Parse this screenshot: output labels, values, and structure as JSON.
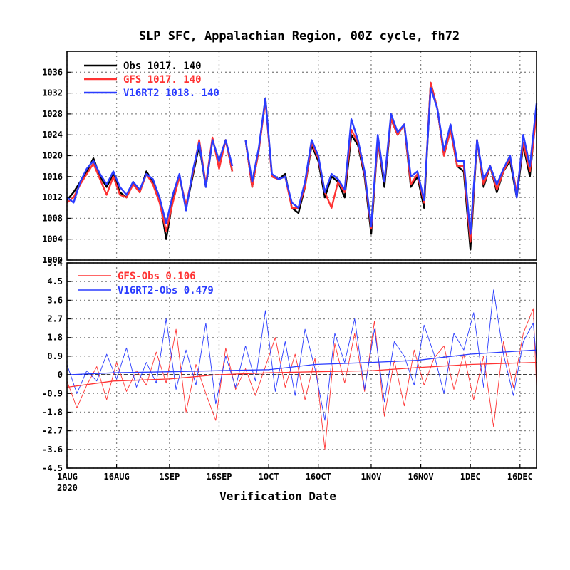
{
  "chart_data": {
    "title": "SLP SFC, Appalachian Region, 00Z cycle, fh72",
    "xlabel": "Verification Date",
    "x_start": "2020-08-01",
    "x_end": "2020-12-21",
    "x_ticks": [
      "1AUG",
      "16AUG",
      "1SEP",
      "16SEP",
      "1OCT",
      "16OCT",
      "1NOV",
      "16NOV",
      "1DEC",
      "16DEC"
    ],
    "x_ticks_dates": [
      "2020-08-01",
      "2020-08-16",
      "2020-09-01",
      "2020-09-16",
      "2020-10-01",
      "2020-10-16",
      "2020-11-01",
      "2020-11-16",
      "2020-12-01",
      "2020-12-16"
    ],
    "x_year_label": "2020",
    "colors": {
      "obs": "#000000",
      "gfs": "#ff3333",
      "v16": "#2a3cff"
    },
    "panels": [
      {
        "type": "line",
        "ylim": [
          1000,
          1040
        ],
        "y_ticks": [
          "1000",
          "1004",
          "1008",
          "1012",
          "1016",
          "1020",
          "1024",
          "1028",
          "1032",
          "1036"
        ],
        "grid": true,
        "legend": [
          {
            "label": "Obs",
            "stats": "1017.  140",
            "color": "#000000"
          },
          {
            "label": "GFS",
            "stats": "1017.  140",
            "color": "#ff3333"
          },
          {
            "label": "V16RT2",
            "stats": "1018.  140",
            "color": "#2a3cff"
          }
        ],
        "series": [
          {
            "name": "Obs",
            "color": "#000000",
            "x": [
              "2020-08-01",
              "2020-08-03",
              "2020-08-05",
              "2020-08-07",
              "2020-08-09",
              "2020-08-11",
              "2020-08-13",
              "2020-08-15",
              "2020-08-17",
              "2020-08-19",
              "2020-08-21",
              "2020-08-23",
              "2020-08-25",
              "2020-08-27",
              "2020-08-29",
              "2020-08-31",
              "2020-09-02",
              "2020-09-04",
              "2020-09-06",
              "2020-09-08",
              "2020-09-10",
              "2020-09-12",
              "2020-09-14",
              "2020-09-16",
              "2020-09-18",
              "2020-09-20",
              null,
              "2020-09-24",
              "2020-09-26",
              "2020-09-28",
              "2020-09-30",
              "2020-10-02",
              "2020-10-04",
              "2020-10-06",
              "2020-10-08",
              "2020-10-10",
              "2020-10-12",
              "2020-10-14",
              "2020-10-16",
              "2020-10-18",
              "2020-10-20",
              "2020-10-22",
              "2020-10-24",
              "2020-10-26",
              "2020-10-28",
              "2020-10-30",
              "2020-11-01",
              "2020-11-03",
              "2020-11-05",
              "2020-11-07",
              "2020-11-09",
              "2020-11-11",
              "2020-11-13",
              "2020-11-15",
              "2020-11-17",
              "2020-11-19",
              "2020-11-21",
              "2020-11-23",
              "2020-11-25",
              "2020-11-27",
              "2020-11-29",
              "2020-12-01",
              "2020-12-03",
              "2020-12-05",
              "2020-12-07",
              "2020-12-09",
              "2020-12-11",
              "2020-12-13",
              "2020-12-15",
              "2020-12-17",
              "2020-12-19",
              "2020-12-21"
            ],
            "values": [
              1011.5,
              1013,
              1015,
              1017,
              1019.5,
              1016,
              1014,
              1016.5,
              1013,
              1012,
              1015,
              1013,
              1017,
              1015,
              1012,
              1004,
              1011.5,
              1016,
              1010,
              1016,
              1022,
              1014,
              1023,
              1019,
              1023,
              1017,
              null,
              1023,
              1014,
              1021,
              1031,
              1016,
              1015.5,
              1016.5,
              1010,
              1009,
              1014,
              1022,
              1019,
              1012,
              1016,
              1015,
              1012,
              1024,
              1022,
              1016,
              1005,
              1023,
              1014,
              1027,
              1024,
              1026,
              1014,
              1016,
              1010,
              1034,
              1029,
              1020,
              1025,
              1018,
              1017,
              1002,
              1023,
              1014,
              1018,
              1013,
              1017,
              1019,
              1012,
              1022,
              1016,
              1029
            ]
          },
          {
            "name": "GFS",
            "color": "#ff3333",
            "x": [
              "2020-08-01",
              "2020-08-03",
              "2020-08-05",
              "2020-08-07",
              "2020-08-09",
              "2020-08-11",
              "2020-08-13",
              "2020-08-15",
              "2020-08-17",
              "2020-08-19",
              "2020-08-21",
              "2020-08-23",
              "2020-08-25",
              "2020-08-27",
              "2020-08-29",
              "2020-08-31",
              "2020-09-02",
              "2020-09-04",
              "2020-09-06",
              "2020-09-08",
              "2020-09-10",
              "2020-09-12",
              "2020-09-14",
              "2020-09-16",
              "2020-09-18",
              "2020-09-20",
              null,
              "2020-09-24",
              "2020-09-26",
              "2020-09-28",
              "2020-09-30",
              "2020-10-02",
              "2020-10-04",
              "2020-10-06",
              "2020-10-08",
              "2020-10-10",
              "2020-10-12",
              "2020-10-14",
              "2020-10-16",
              "2020-10-18",
              "2020-10-20",
              "2020-10-22",
              "2020-10-24",
              "2020-10-26",
              "2020-10-28",
              "2020-10-30",
              "2020-11-01",
              "2020-11-03",
              "2020-11-05",
              "2020-11-07",
              "2020-11-09",
              "2020-11-11",
              "2020-11-13",
              "2020-11-15",
              "2020-11-17",
              "2020-11-19",
              "2020-11-21",
              "2020-11-23",
              "2020-11-25",
              "2020-11-27",
              "2020-11-29",
              "2020-12-01",
              "2020-12-03",
              "2020-12-05",
              "2020-12-07",
              "2020-12-09",
              "2020-12-11",
              "2020-12-13",
              "2020-12-15",
              "2020-12-17",
              "2020-12-19",
              "2020-12-21"
            ],
            "values": [
              1011,
              1012,
              1014.5,
              1016.5,
              1018.5,
              1015.5,
              1012.5,
              1016,
              1012.5,
              1012,
              1014.5,
              1013,
              1016.5,
              1014.5,
              1011,
              1005.5,
              1011,
              1016,
              1010.5,
              1016.5,
              1023,
              1014.5,
              1023.5,
              1017.5,
              1023,
              1017,
              null,
              1023,
              1014,
              1021,
              1030.5,
              1016,
              1015.5,
              1016,
              1010,
              1010,
              1014,
              1022.5,
              1019.5,
              1013,
              1010,
              1015,
              1013,
              1025,
              1022.5,
              1016.5,
              1006,
              1023,
              1015,
              1027,
              1024,
              1026,
              1014.5,
              1016.5,
              1011,
              1034,
              1029,
              1020,
              1025,
              1018,
              1018,
              1003.5,
              1023,
              1014.5,
              1018,
              1013.5,
              1017,
              1019.5,
              1013,
              1022.5,
              1017,
              1028
            ]
          },
          {
            "name": "V16RT2",
            "color": "#2a3cff",
            "x": [
              "2020-08-01",
              "2020-08-03",
              "2020-08-05",
              "2020-08-07",
              "2020-08-09",
              "2020-08-11",
              "2020-08-13",
              "2020-08-15",
              "2020-08-17",
              "2020-08-19",
              "2020-08-21",
              "2020-08-23",
              "2020-08-25",
              "2020-08-27",
              "2020-08-29",
              "2020-08-31",
              "2020-09-02",
              "2020-09-04",
              "2020-09-06",
              "2020-09-08",
              "2020-09-10",
              "2020-09-12",
              "2020-09-14",
              "2020-09-16",
              "2020-09-18",
              "2020-09-20",
              null,
              "2020-09-24",
              "2020-09-26",
              "2020-09-28",
              "2020-09-30",
              "2020-10-02",
              "2020-10-04",
              "2020-10-06",
              "2020-10-08",
              "2020-10-10",
              "2020-10-12",
              "2020-10-14",
              "2020-10-16",
              "2020-10-18",
              "2020-10-20",
              "2020-10-22",
              "2020-10-24",
              "2020-10-26",
              "2020-10-28",
              "2020-10-30",
              "2020-11-01",
              "2020-11-03",
              "2020-11-05",
              "2020-11-07",
              "2020-11-09",
              "2020-11-11",
              "2020-11-13",
              "2020-11-15",
              "2020-11-17",
              "2020-11-19",
              "2020-11-21",
              "2020-11-23",
              "2020-11-25",
              "2020-11-27",
              "2020-11-29",
              "2020-12-01",
              "2020-12-03",
              "2020-12-05",
              "2020-12-07",
              "2020-12-09",
              "2020-12-11",
              "2020-12-13",
              "2020-12-15",
              "2020-12-17",
              "2020-12-19",
              "2020-12-21"
            ],
            "values": [
              1012,
              1011,
              1015,
              1017.5,
              1019,
              1016.5,
              1014.5,
              1017,
              1014,
              1012.5,
              1015,
              1013.5,
              1016.5,
              1015.5,
              1012,
              1007,
              1012.5,
              1016.5,
              1009.5,
              1017,
              1022.5,
              1014,
              1023,
              1019,
              1023,
              1018,
              null,
              1023,
              1015,
              1021.5,
              1031,
              1016.5,
              1015.5,
              1016,
              1011,
              1010,
              1015,
              1023,
              1020,
              1013,
              1016.5,
              1015.5,
              1013.5,
              1027,
              1023,
              1017,
              1006.5,
              1024,
              1015,
              1028,
              1024.5,
              1026,
              1016,
              1017,
              1011.5,
              1033,
              1029,
              1021,
              1026,
              1019,
              1019,
              1005,
              1023,
              1015.5,
              1018,
              1014.5,
              1017.5,
              1020,
              1012,
              1024,
              1018,
              1030
            ]
          }
        ]
      },
      {
        "type": "line",
        "ylim": [
          -4.5,
          5.4
        ],
        "y_ticks": [
          "-4.5",
          "-3.6",
          "-2.7",
          "-1.8",
          "-0.9",
          "0",
          "0.9",
          "1.8",
          "2.7",
          "3.6",
          "4.5",
          "5.4"
        ],
        "grid": true,
        "legend": [
          {
            "label": "GFS-Obs",
            "stats": "0.106",
            "color": "#ff3333"
          },
          {
            "label": "V16RT2-Obs",
            "stats": "0.479",
            "color": "#2a3cff"
          }
        ],
        "series": [
          {
            "name": "GFS-Obs",
            "color": "#ff3333",
            "x": [
              "2020-08-01",
              "2020-08-04",
              "2020-08-07",
              "2020-08-10",
              "2020-08-13",
              "2020-08-16",
              "2020-08-19",
              "2020-08-22",
              "2020-08-25",
              "2020-08-28",
              "2020-08-31",
              "2020-09-03",
              "2020-09-06",
              "2020-09-09",
              "2020-09-12",
              "2020-09-15",
              "2020-09-18",
              "2020-09-21",
              "2020-09-24",
              "2020-09-27",
              "2020-09-30",
              "2020-10-03",
              "2020-10-06",
              "2020-10-09",
              "2020-10-12",
              "2020-10-15",
              "2020-10-18",
              "2020-10-21",
              "2020-10-24",
              "2020-10-27",
              "2020-10-30",
              "2020-11-02",
              "2020-11-05",
              "2020-11-08",
              "2020-11-11",
              "2020-11-14",
              "2020-11-17",
              "2020-11-20",
              "2020-11-23",
              "2020-11-26",
              "2020-11-29",
              "2020-12-02",
              "2020-12-05",
              "2020-12-08",
              "2020-12-11",
              "2020-12-14",
              "2020-12-17",
              "2020-12-20",
              "2020-12-21"
            ],
            "values": [
              -0.3,
              -1.6,
              -0.5,
              0.4,
              -1.2,
              0.6,
              -0.8,
              0.2,
              -0.5,
              1.1,
              -0.4,
              2.2,
              -1.8,
              0.5,
              -0.9,
              -2.2,
              1.3,
              -0.7,
              0.3,
              -1.0,
              0.4,
              1.8,
              -0.6,
              1.0,
              -1.2,
              0.8,
              -3.6,
              1.5,
              -0.4,
              2.0,
              -0.8,
              2.6,
              -2.0,
              0.7,
              -1.5,
              1.2,
              -0.5,
              0.8,
              1.4,
              -0.7,
              1.0,
              -1.2,
              0.9,
              -2.5,
              1.6,
              -0.6,
              2.0,
              3.2,
              -0.6
            ]
          },
          {
            "name": "V16RT2-Obs",
            "color": "#2a3cff",
            "x": [
              "2020-08-01",
              "2020-08-04",
              "2020-08-07",
              "2020-08-10",
              "2020-08-13",
              "2020-08-16",
              "2020-08-19",
              "2020-08-22",
              "2020-08-25",
              "2020-08-28",
              "2020-08-31",
              "2020-09-03",
              "2020-09-06",
              "2020-09-09",
              "2020-09-12",
              "2020-09-15",
              "2020-09-18",
              "2020-09-21",
              "2020-09-24",
              "2020-09-27",
              "2020-09-30",
              "2020-10-03",
              "2020-10-06",
              "2020-10-09",
              "2020-10-12",
              "2020-10-15",
              "2020-10-18",
              "2020-10-21",
              "2020-10-24",
              "2020-10-27",
              "2020-10-30",
              "2020-11-02",
              "2020-11-05",
              "2020-11-08",
              "2020-11-11",
              "2020-11-14",
              "2020-11-17",
              "2020-11-20",
              "2020-11-23",
              "2020-11-26",
              "2020-11-29",
              "2020-12-02",
              "2020-12-05",
              "2020-12-08",
              "2020-12-11",
              "2020-12-14",
              "2020-12-17",
              "2020-12-20",
              "2020-12-21"
            ],
            "values": [
              0.5,
              -0.9,
              0.2,
              -0.3,
              1.0,
              -0.2,
              1.3,
              -0.6,
              0.6,
              -0.4,
              2.7,
              -0.7,
              1.2,
              -0.5,
              2.5,
              -1.4,
              0.9,
              -0.6,
              1.4,
              -0.3,
              3.1,
              -0.8,
              1.6,
              -1.0,
              2.2,
              0.3,
              -2.2,
              2.0,
              0.6,
              2.7,
              -0.7,
              2.2,
              -1.3,
              1.6,
              0.9,
              -0.5,
              2.4,
              1.0,
              -0.9,
              2.0,
              1.2,
              3.0,
              -0.6,
              4.1,
              1.0,
              -1.0,
              1.6,
              2.5,
              0.7
            ]
          },
          {
            "name": "",
            "color": "#ff3333",
            "x": [
              "2020-08-01",
              "2020-08-15",
              "2020-09-01",
              "2020-09-15",
              "2020-10-01",
              "2020-10-15",
              "2020-11-01",
              "2020-11-15",
              "2020-12-01",
              "2020-12-21"
            ],
            "values": [
              -0.6,
              -0.3,
              -0.2,
              0.0,
              0.1,
              0.15,
              0.2,
              0.35,
              0.5,
              0.6
            ]
          },
          {
            "name": "",
            "color": "#2a3cff",
            "x": [
              "2020-08-01",
              "2020-08-15",
              "2020-09-01",
              "2020-09-15",
              "2020-10-01",
              "2020-10-15",
              "2020-11-01",
              "2020-11-15",
              "2020-12-01",
              "2020-12-21"
            ],
            "values": [
              0.0,
              0.1,
              0.15,
              0.2,
              0.25,
              0.5,
              0.6,
              0.7,
              1.0,
              1.2
            ]
          }
        ]
      }
    ]
  }
}
